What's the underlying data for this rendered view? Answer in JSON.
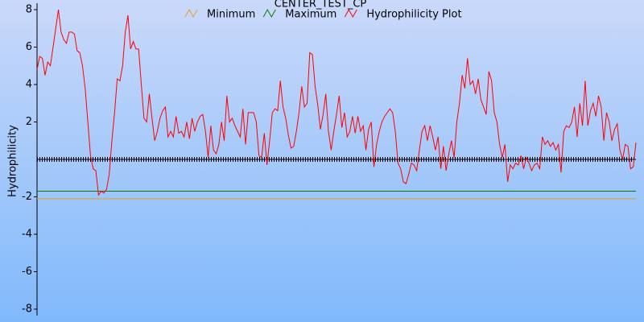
{
  "chart_data": {
    "type": "line",
    "title": "CENTER_TEST_CP",
    "y_label": "Hydrophilicity",
    "ylim": [
      -8,
      8
    ],
    "yticks": [
      -8,
      -6,
      -4,
      -2,
      2,
      4,
      6,
      8
    ],
    "series": [
      {
        "name": "Minimum",
        "color": "#e8a020",
        "value": -2.1
      },
      {
        "name": "Maximum",
        "color": "#008000",
        "value": -1.7
      },
      {
        "name": "Hydrophilicity Plot",
        "color": "#ff0000",
        "values": [
          4.8,
          5.5,
          5.4,
          4.5,
          5.2,
          5.0,
          6.0,
          7.0,
          8.0,
          6.8,
          6.4,
          6.2,
          6.8,
          6.8,
          6.7,
          5.8,
          5.7,
          5.0,
          3.8,
          2.0,
          0.2,
          -0.5,
          -0.6,
          -1.9,
          -1.7,
          -1.8,
          -1.6,
          -0.8,
          1.0,
          2.5,
          4.3,
          4.2,
          5.0,
          6.8,
          7.7,
          5.9,
          6.3,
          5.9,
          5.9,
          4.0,
          2.2,
          2.0,
          3.5,
          2.2,
          1.0,
          1.5,
          2.2,
          2.6,
          2.8,
          1.2,
          1.5,
          1.2,
          2.3,
          1.4,
          1.5,
          1.2,
          2.0,
          1.1,
          2.2,
          1.5,
          2.0,
          2.3,
          2.4,
          1.5,
          0.1,
          1.8,
          0.5,
          0.3,
          0.8,
          2.0,
          1.0,
          3.4,
          2.0,
          2.2,
          1.8,
          1.5,
          1.2,
          2.7,
          0.8,
          2.5,
          2.5,
          2.5,
          2.0,
          0.2,
          0.1,
          1.4,
          -0.3,
          1.0,
          2.5,
          2.7,
          2.6,
          4.2,
          2.8,
          2.2,
          1.3,
          0.6,
          0.7,
          1.5,
          2.5,
          3.9,
          2.8,
          3.0,
          5.7,
          5.6,
          3.9,
          2.9,
          1.6,
          2.4,
          3.5,
          1.5,
          0.5,
          1.5,
          2.4,
          3.4,
          1.7,
          2.5,
          1.2,
          1.5,
          2.3,
          1.4,
          2.3,
          1.5,
          1.8,
          0.5,
          1.6,
          2.0,
          -0.4,
          0.8,
          1.5,
          2.0,
          2.3,
          2.5,
          2.7,
          2.5,
          1.5,
          -0.2,
          -0.5,
          -1.2,
          -1.3,
          -0.8,
          -0.2,
          -0.3,
          -0.6,
          0.5,
          1.5,
          1.8,
          1.0,
          1.8,
          1.2,
          0.5,
          1.2,
          -0.5,
          0.7,
          -0.6,
          0.3,
          1.0,
          0.1,
          2.0,
          3.0,
          4.5,
          3.8,
          5.4,
          4.0,
          4.2,
          3.5,
          4.3,
          3.2,
          2.8,
          2.4,
          4.7,
          4.2,
          2.5,
          2.0,
          0.8,
          0.1,
          0.8,
          -1.2,
          -0.3,
          -0.5,
          -0.2,
          -0.3,
          0.2,
          -0.5,
          0.1,
          -0.2,
          -0.6,
          -0.3,
          -0.2,
          -0.5,
          1.2,
          0.8,
          1.0,
          0.7,
          0.9,
          0.5,
          0.8,
          -0.7,
          1.5,
          1.8,
          1.7,
          2.0,
          2.8,
          1.2,
          3.0,
          1.8,
          4.2,
          1.8,
          2.6,
          3.0,
          2.3,
          3.4,
          2.8,
          1.0,
          2.5,
          2.0,
          1.0,
          1.6,
          1.9,
          0.5,
          0.0,
          0.8,
          0.7,
          -0.5,
          -0.4,
          0.9
        ]
      }
    ]
  }
}
